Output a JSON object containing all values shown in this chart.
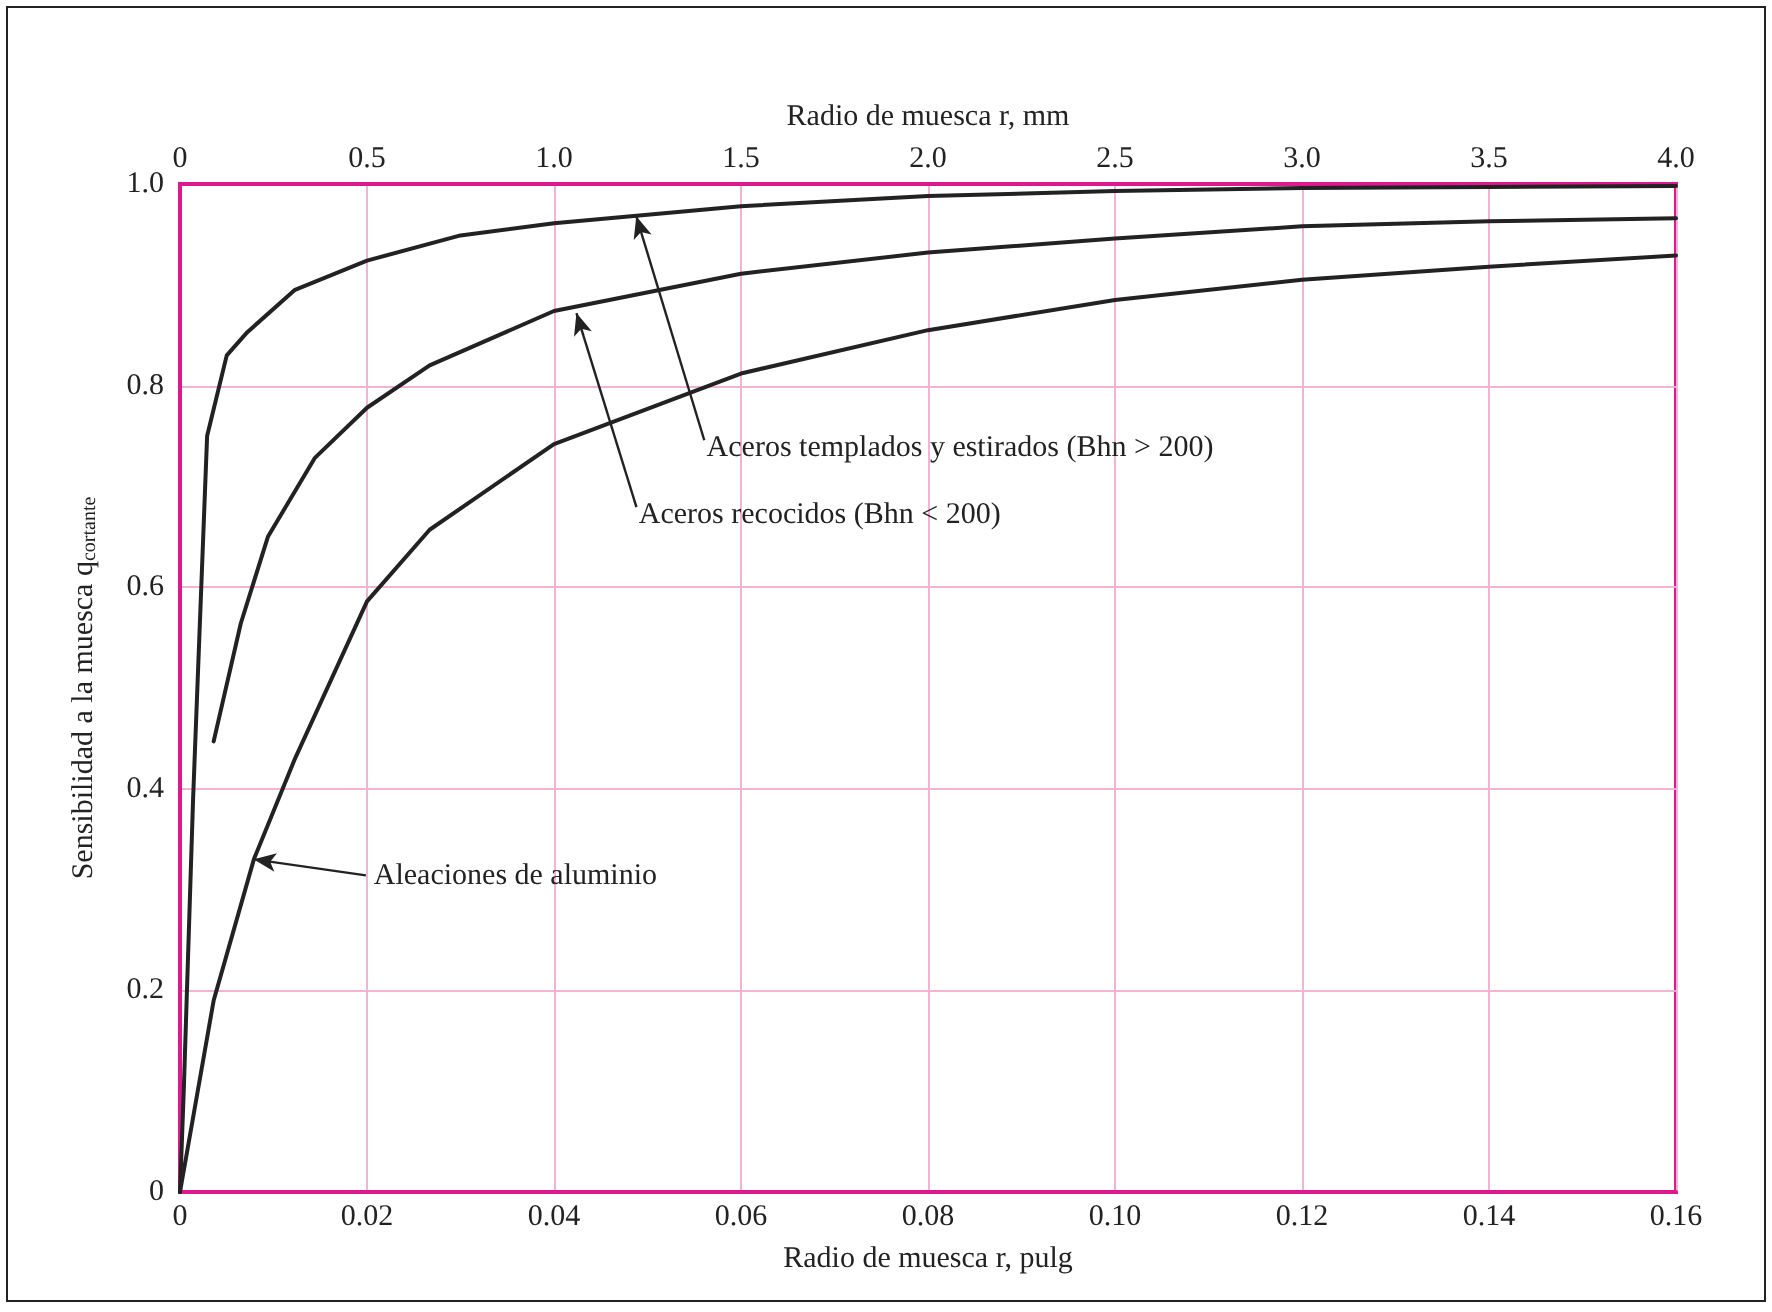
{
  "chart_data": {
    "type": "line",
    "xlabel": "Radio de muesca r, pulg",
    "x2label": "Radio de muesca r, mm",
    "ylabel": "Sensibilidad a la muesca q$_{cortante}$",
    "xlim": [
      0,
      0.16
    ],
    "xticks": [
      0,
      0.02,
      0.04,
      0.06,
      0.08,
      {
        "value": 0.1,
        "label": "0.10"
      },
      0.12,
      0.14,
      0.16
    ],
    "x2lim": [
      0,
      4
    ],
    "x2ticks": [
      0,
      0.5,
      {
        "value": 1,
        "label": "1.0"
      },
      1.5,
      {
        "value": 2,
        "label": "2.0"
      },
      2.5,
      {
        "value": 3,
        "label": "3.0"
      },
      3.5,
      {
        "value": 4,
        "label": "4.0"
      }
    ],
    "ylim": [
      0,
      1
    ],
    "yticks": [
      0,
      0.2,
      0.4,
      0.6,
      0.8,
      {
        "value": 1,
        "label": "1.0"
      }
    ],
    "grid": true,
    "marker": "none",
    "line_style": "solid",
    "series": [
      {
        "color": "#222222",
        "x": [
          0,
          0.0004,
          0.0014,
          0.0029,
          0.005,
          0.0072,
          0.0123,
          0.02,
          0.03,
          0.04,
          0.06,
          0.08,
          0.1,
          0.12,
          0.14,
          0.16
        ],
        "values": [
          0,
          0.1,
          0.39,
          0.75,
          0.83,
          0.853,
          0.895,
          0.924,
          0.949,
          0.961,
          0.978,
          0.988,
          0.993,
          0.996,
          0.997,
          0.998
        ]
      },
      {
        "color": "#222222",
        "x": [
          0.0036,
          0.0065,
          0.0094,
          0.0144,
          0.02,
          0.0267,
          0.04,
          0.06,
          0.08,
          0.1,
          0.12,
          0.14,
          0.16
        ],
        "values": [
          0.447,
          0.564,
          0.65,
          0.728,
          0.778,
          0.82,
          0.874,
          0.911,
          0.932,
          0.946,
          0.958,
          0.963,
          0.966
        ]
      },
      {
        "color": "#222222",
        "x": [
          0,
          0.0036,
          0.0079,
          0.0123,
          0.02,
          0.0267,
          0.04,
          0.06,
          0.08,
          0.1,
          0.12,
          0.14,
          0.16
        ],
        "values": [
          0,
          0.19,
          0.33,
          0.43,
          0.586,
          0.657,
          0.742,
          0.812,
          0.855,
          0.885,
          0.905,
          0.918,
          0.929
        ]
      }
    ],
    "annotations": [
      {
        "text": "Aceros templados y estirados (Bhn > 200)",
        "x": 0.0488,
        "y": 0.968
      },
      {
        "text": "Aceros recocidos (Bhn < 200)",
        "x": 0.0424,
        "y": 0.872
      },
      {
        "text": "Aleaciones de aluminio",
        "x": 0.0079,
        "y": 0.33
      }
    ]
  }
}
